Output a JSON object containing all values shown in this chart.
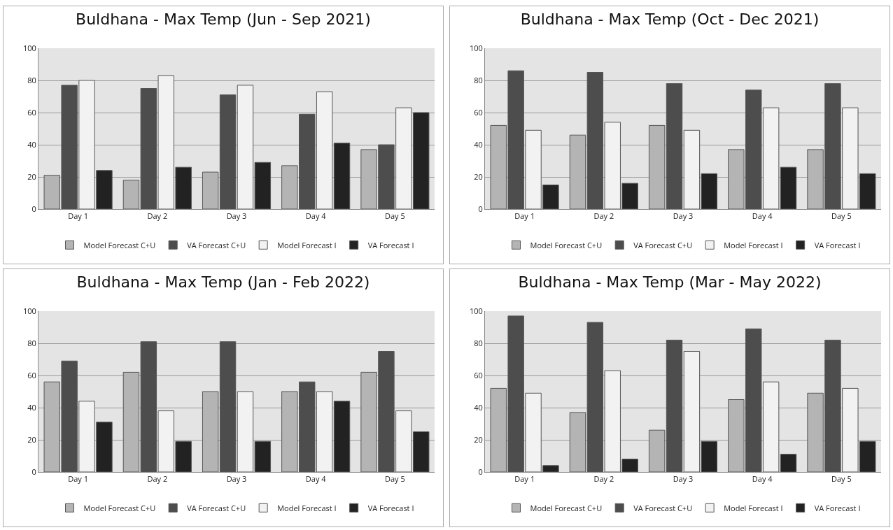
{
  "chart_data": [
    {
      "type": "bar",
      "title": "Buldhana - Max Temp (Jun - Sep 2021)",
      "categories": [
        "Day 1",
        "Day 2",
        "Day 3",
        "Day 4",
        "Day 5"
      ],
      "ylim": [
        0,
        100
      ],
      "yticks": [
        0,
        20,
        40,
        60,
        80,
        100
      ],
      "grid": "y",
      "legend": "bottom",
      "series": [
        {
          "name": "Model Forecast C+U",
          "color": "#b4b4b4",
          "values": [
            21,
            18,
            23,
            27,
            37
          ]
        },
        {
          "name": "VA Forecast C+U",
          "color": "#4d4d4d",
          "values": [
            77,
            75,
            71,
            59,
            40
          ]
        },
        {
          "name": "Model Forecast I",
          "color": "#f2f2f2",
          "values": [
            80,
            83,
            77,
            73,
            63
          ]
        },
        {
          "name": "VA Forecast I",
          "color": "#222222",
          "values": [
            24,
            26,
            29,
            41,
            60
          ]
        }
      ]
    },
    {
      "type": "bar",
      "title": "Buldhana - Max Temp (Oct - Dec 2021)",
      "categories": [
        "Day 1",
        "Day 2",
        "Day 3",
        "Day 4",
        "Day 5"
      ],
      "ylim": [
        0,
        100
      ],
      "yticks": [
        0,
        20,
        40,
        60,
        80,
        100
      ],
      "grid": "y",
      "legend": "bottom",
      "series": [
        {
          "name": "Model Forecast C+U",
          "color": "#b4b4b4",
          "values": [
            52,
            46,
            52,
            37,
            37
          ]
        },
        {
          "name": "VA Forecast C+U",
          "color": "#4d4d4d",
          "values": [
            86,
            85,
            78,
            74,
            78
          ]
        },
        {
          "name": "Model Forecast I",
          "color": "#f2f2f2",
          "values": [
            49,
            54,
            49,
            63,
            63
          ]
        },
        {
          "name": "VA Forecast I",
          "color": "#222222",
          "values": [
            15,
            16,
            22,
            26,
            22
          ]
        }
      ]
    },
    {
      "type": "bar",
      "title": "Buldhana - Max Temp (Jan - Feb 2022)",
      "categories": [
        "Day 1",
        "Day 2",
        "Day 3",
        "Day 4",
        "Day 5"
      ],
      "ylim": [
        0,
        100
      ],
      "yticks": [
        0,
        20,
        40,
        60,
        80,
        100
      ],
      "grid": "y",
      "legend": "bottom",
      "series": [
        {
          "name": "Model Forecast C+U",
          "color": "#b4b4b4",
          "values": [
            56,
            62,
            50,
            50,
            62
          ]
        },
        {
          "name": "VA Forecast C+U",
          "color": "#4d4d4d",
          "values": [
            69,
            81,
            81,
            56,
            75
          ]
        },
        {
          "name": "Model Forecast I",
          "color": "#f2f2f2",
          "values": [
            44,
            38,
            50,
            50,
            38
          ]
        },
        {
          "name": "VA Forecast I",
          "color": "#222222",
          "values": [
            31,
            19,
            19,
            44,
            25
          ]
        }
      ]
    },
    {
      "type": "bar",
      "title": "Buldhana - Max Temp (Mar - May 2022)",
      "categories": [
        "Day 1",
        "Day 2",
        "Day 3",
        "Day 4",
        "Day 5"
      ],
      "ylim": [
        0,
        100
      ],
      "yticks": [
        0,
        20,
        40,
        60,
        80,
        100
      ],
      "grid": "y",
      "legend": "bottom",
      "series": [
        {
          "name": "Model Forecast C+U",
          "color": "#b4b4b4",
          "values": [
            52,
            37,
            26,
            45,
            49
          ]
        },
        {
          "name": "VA Forecast C+U",
          "color": "#4d4d4d",
          "values": [
            97,
            93,
            82,
            89,
            82
          ]
        },
        {
          "name": "Model Forecast I",
          "color": "#f2f2f2",
          "values": [
            49,
            63,
            75,
            56,
            52
          ]
        },
        {
          "name": "VA Forecast I",
          "color": "#222222",
          "values": [
            4,
            8,
            19,
            11,
            19
          ]
        }
      ]
    }
  ]
}
